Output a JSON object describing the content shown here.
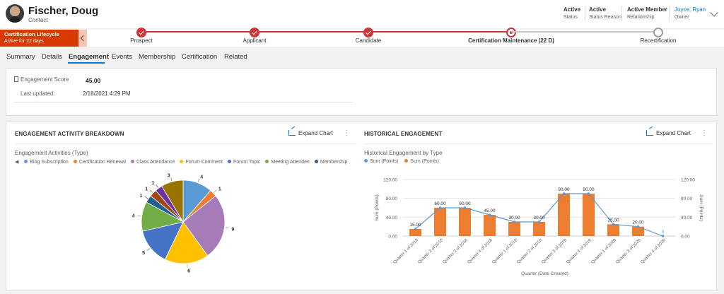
{
  "header": {
    "name": "Fischer, Doug",
    "entity": "Contact",
    "fields": [
      {
        "value": "Active",
        "label": "Status"
      },
      {
        "value": "Active",
        "label": "Status Reason"
      },
      {
        "value": "Active Member",
        "label": "Relationship"
      },
      {
        "value": "Joyce, Ryan",
        "label": "Owner"
      }
    ]
  },
  "process": {
    "badge_title": "Certification Lifecycle",
    "badge_sub": "Active for 22 days",
    "stages": [
      {
        "label": "Prospect",
        "state": "done"
      },
      {
        "label": "Applicant",
        "state": "done"
      },
      {
        "label": "Candidate",
        "state": "done"
      },
      {
        "label": "Certification Maintenance  (22 D)",
        "state": "current"
      },
      {
        "label": "Recertification",
        "state": "next"
      }
    ],
    "color_active": "#d13438"
  },
  "tabs": [
    "Summary",
    "Details",
    "Engagement",
    "Events",
    "Membership",
    "Certification",
    "Related"
  ],
  "active_tab": "Engagement",
  "score": {
    "label": "Engagement Score",
    "value": "45.00",
    "updated_label": "Last updated:",
    "updated_value": "2/18/2021 4:29 PM"
  },
  "pie_panel": {
    "title": "Engagement Activity Breakdown",
    "expand_label": "Expand Chart",
    "more_icon": "ellipsis-icon"
  },
  "bar_panel": {
    "title": "Historical Engagement",
    "expand_label": "Expand Chart",
    "more_icon": "ellipsis-icon"
  },
  "chart_data": [
    {
      "type": "pie",
      "title": "Engagement Activities (Type)",
      "legend": [
        "Blog Subscription",
        "Certification Renewal",
        "Class Attendance",
        "Forum Comment",
        "Forum Topic",
        "Meeting Attendee",
        "Membership F"
      ],
      "slices": [
        {
          "name": "Blog Subscription",
          "value": 4,
          "color": "#5b9bd5"
        },
        {
          "name": "Certification Renewal",
          "value": 1,
          "color": "#ed7d31"
        },
        {
          "name": "Class Attendance",
          "value": 9,
          "color": "#a57cb7"
        },
        {
          "name": "Forum Comment",
          "value": 6,
          "color": "#ffc000"
        },
        {
          "name": "Forum Topic",
          "value": 5,
          "color": "#4472c4"
        },
        {
          "name": "Meeting Attendee",
          "value": 4,
          "color": "#70ad47"
        },
        {
          "name": "Membership F",
          "value": 1,
          "color": "#255e91"
        },
        {
          "name": "",
          "value": 1,
          "color": "#9e480e"
        },
        {
          "name": "",
          "value": 1,
          "color": "#7030a0"
        },
        {
          "name": "",
          "value": 3,
          "color": "#997300"
        }
      ]
    },
    {
      "type": "bar",
      "title": "Historical Engagement by Type",
      "xlabel": "Quarter (Date Created)",
      "ylabel": "Sum (Points)",
      "y2label": "Sum (Points)",
      "ylim": [
        0,
        120
      ],
      "yticks": [
        "0.00",
        "40.00",
        "80.00",
        "120.00"
      ],
      "categories": [
        "Quarter 1 of 2018",
        "Quarter 2 of 2018",
        "Quarter 3 of 2018",
        "Quarter 4 of 2018",
        "Quarter 1 of 2019",
        "Quarter 2 of 2019",
        "Quarter 3 of 2019",
        "Quarter 4 of 2019",
        "Quarter 1 of 2020",
        "Quarter 3 of 2020",
        "Quarter 4 of 2020"
      ],
      "series": [
        {
          "name": "Sum (Points)",
          "kind": "line",
          "color": "#5b9bd5",
          "values": [
            15,
            60,
            60,
            45,
            30,
            30,
            90,
            90,
            25,
            20,
            0
          ]
        },
        {
          "name": "Sum (Points)",
          "kind": "bar",
          "color": "#ed7d31",
          "values": [
            15,
            60,
            60,
            45,
            30,
            30,
            90,
            90,
            25,
            20,
            0
          ]
        }
      ],
      "data_labels": [
        "15.00",
        "60.00",
        "60.00",
        "45.00",
        "30.00",
        "30.00",
        "90.00",
        "90.00",
        "25.00",
        "20.00",
        "0"
      ]
    }
  ]
}
